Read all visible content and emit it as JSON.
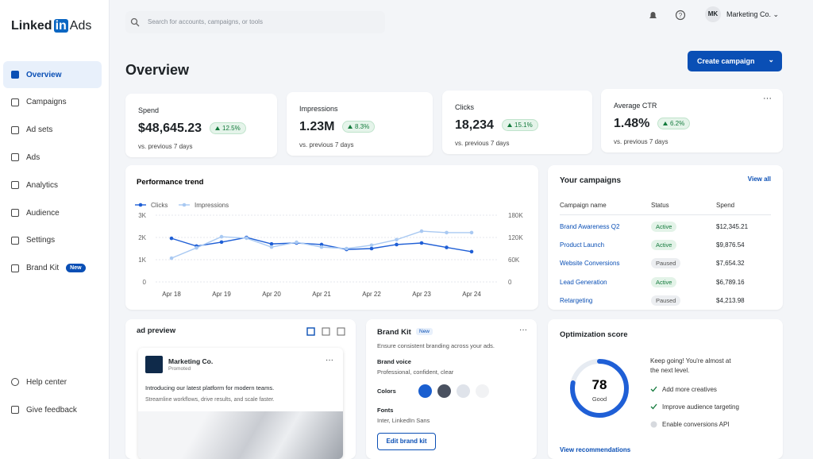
{
  "sidebar": {
    "logo": "Linked",
    "logo_in": "in",
    "logo_suffix": "Ads",
    "nav": [
      "Overview",
      "Campaigns",
      "Ad sets",
      "Ads",
      "Analytics",
      "Audience",
      "Settings",
      "Brand Kit"
    ],
    "badge": "New",
    "footer": [
      "Help center",
      "Give feedback"
    ]
  },
  "topbar": {
    "search_placeholder": "Search for accounts, campaigns, or tools",
    "avatar": "MK",
    "account": "Marketing Co."
  },
  "header": {
    "title": "Overview",
    "button": "Create campaign"
  },
  "kpis": [
    {
      "label": "Spend",
      "value": "$48,645.23",
      "change": "12.5%",
      "note": "vs. previous 7 days"
    },
    {
      "label": "Impressions",
      "value": "1.23M",
      "change": "8.3%",
      "note": "vs. previous 7 days"
    },
    {
      "label": "Clicks",
      "value": "18,234",
      "change": "15.1%",
      "note": "vs. previous 7 days"
    },
    {
      "label": "Average CTR",
      "value": "1.48%",
      "change": "6.2%",
      "note": "vs. previous 7 days"
    }
  ],
  "chart_data": {
    "type": "line",
    "title": "Performance trend",
    "categories": [
      "Apr 18",
      null,
      "Apr 19",
      null,
      "Apr 20",
      null,
      "Apr 21",
      null,
      "Apr 22",
      null,
      "Apr 23",
      null,
      "Apr 24"
    ],
    "series": [
      {
        "name": "Clicks",
        "color": "#1f5fd6",
        "values": [
          1960,
          1610,
          1790,
          2000,
          1710,
          1750,
          1680,
          1460,
          1500,
          1680,
          1750,
          1550,
          1360
        ]
      },
      {
        "name": "Impressions",
        "color": "#a9c9f2",
        "axis": "y2",
        "values": [
          64000,
          92000,
          122000,
          118000,
          94000,
          107000,
          94000,
          90000,
          99000,
          114000,
          137000,
          133000,
          133000
        ]
      }
    ],
    "ylim": [
      0,
      3000
    ],
    "yticks": [
      0,
      {
        "value": 1000,
        "label": "1K"
      },
      {
        "value": 2000,
        "label": "2K"
      },
      {
        "value": 3000,
        "label": "3K"
      }
    ],
    "y2lim": [
      0,
      180000
    ],
    "y2ticks": [
      0,
      {
        "value": 60000,
        "label": "60K"
      },
      {
        "value": 120000,
        "label": "120K"
      },
      {
        "value": 180000,
        "label": "180K"
      }
    ],
    "grid": true,
    "legend": "top-left"
  },
  "campaigns": {
    "title": "Your campaigns",
    "link": "View all",
    "columns": [
      "Campaign name",
      "Status",
      "Spend"
    ],
    "rows": [
      [
        "Brand Awareness Q2",
        "Active",
        "$12,345.21"
      ],
      [
        "Product Launch",
        "Active",
        "$9,876.54"
      ],
      [
        "Website Conversions",
        "Paused",
        "$7,654.32"
      ],
      [
        "Lead Generation",
        "Active",
        "$6,789.16"
      ],
      [
        "Retargeting",
        "Paused",
        "$4,213.98"
      ]
    ]
  },
  "ad_preview": {
    "title": "ad preview",
    "company": "Marketing Co.",
    "tag": "Promoted",
    "headline": "Introducing our latest platform for modern teams.",
    "body": "Streamline workflows, drive results, and scale faster."
  },
  "brand_kit": {
    "title": "Brand Kit",
    "badge": "New",
    "subtitle": "Ensure consistent branding across your ads.",
    "voice_label": "Brand voice",
    "voice": "Professional, confident, clear",
    "colors_label": "Colors",
    "colors": [
      "#1a5fd0",
      "#4a5160",
      "#dfe3ea",
      "#f1f2f4"
    ],
    "fonts_label": "Fonts",
    "fonts": "Inter, LinkedIn Sans",
    "button": "Edit brand kit"
  },
  "optimization": {
    "title": "Optimization score",
    "score": "78",
    "score_label": "Good",
    "message": "Keep going! You're almost at the next level.",
    "items": [
      "Add more creatives",
      "Improve audience targeting",
      "Enable conversions API"
    ],
    "link": "View recommendations"
  }
}
